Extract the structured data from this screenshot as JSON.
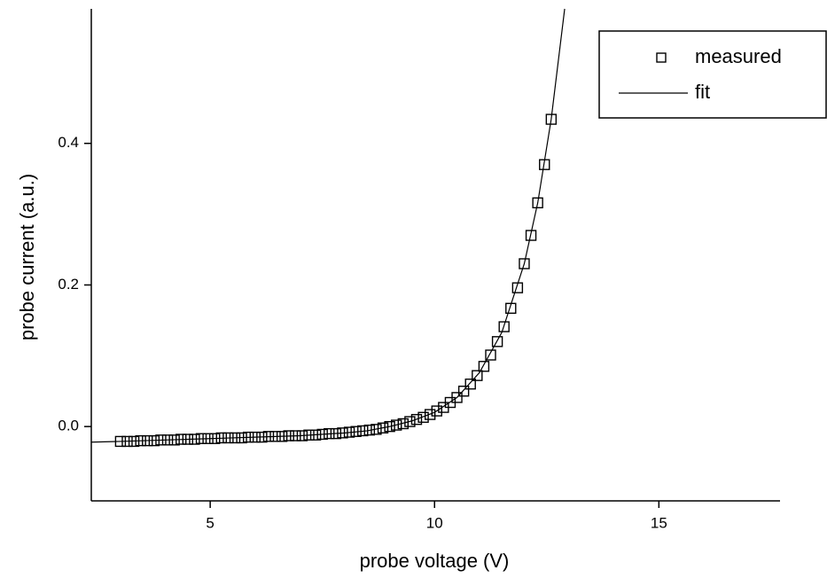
{
  "chart_data": {
    "type": "scatter",
    "x_label": "probe voltage (V)",
    "y_label": "probe current (a.u.)",
    "xlim": [
      2.35,
      17.7
    ],
    "ylim": [
      -0.105,
      0.59
    ],
    "xticks": [
      5,
      10,
      15
    ],
    "yticks": [
      {
        "value": 0,
        "label": "0.0"
      },
      0.2,
      0.4
    ],
    "legend": "upper right",
    "series": [
      {
        "name": "measured",
        "style": "markers",
        "color": "#000000",
        "x": [
          3.0,
          3.15,
          3.3,
          3.45,
          3.6,
          3.75,
          3.9,
          4.05,
          4.2,
          4.35,
          4.5,
          4.65,
          4.8,
          4.95,
          5.1,
          5.25,
          5.4,
          5.55,
          5.7,
          5.85,
          6.0,
          6.15,
          6.3,
          6.45,
          6.6,
          6.75,
          6.9,
          7.05,
          7.2,
          7.35,
          7.5,
          7.65,
          7.8,
          7.95,
          8.1,
          8.25,
          8.4,
          8.55,
          8.7,
          8.85,
          9.0,
          9.15,
          9.3,
          9.45,
          9.6,
          9.75,
          9.9,
          10.05,
          10.2,
          10.35,
          10.5,
          10.65,
          10.8,
          10.95,
          11.1,
          11.25,
          11.4,
          11.55,
          11.7,
          11.85,
          12.0,
          12.15,
          12.3,
          12.45,
          12.6
        ],
        "values": [
          -0.021,
          -0.021,
          -0.021,
          -0.02,
          -0.02,
          -0.02,
          -0.019,
          -0.019,
          -0.019,
          -0.018,
          -0.018,
          -0.018,
          -0.017,
          -0.017,
          -0.017,
          -0.016,
          -0.016,
          -0.016,
          -0.016,
          -0.015,
          -0.015,
          -0.015,
          -0.014,
          -0.014,
          -0.014,
          -0.013,
          -0.013,
          -0.013,
          -0.012,
          -0.012,
          -0.011,
          -0.01,
          -0.01,
          -0.009,
          -0.008,
          -0.007,
          -0.006,
          -0.005,
          -0.004,
          -0.002,
          0.0,
          0.002,
          0.004,
          0.007,
          0.01,
          0.013,
          0.017,
          0.022,
          0.027,
          0.034,
          0.041,
          0.05,
          0.06,
          0.072,
          0.085,
          0.101,
          0.12,
          0.141,
          0.167,
          0.196,
          0.23,
          0.27,
          0.316,
          0.37,
          0.434
        ]
      },
      {
        "name": "fit",
        "style": "line",
        "color": "#000000",
        "x": [
          2.35,
          3,
          4,
          5,
          6,
          7,
          8,
          8.5,
          9,
          9.5,
          10,
          10.5,
          11,
          11.5,
          12,
          12.3,
          12.6,
          12.9
        ],
        "values": [
          -0.022,
          -0.021,
          -0.019,
          -0.017,
          -0.015,
          -0.013,
          -0.009,
          -0.006,
          0.0,
          0.008,
          0.02,
          0.041,
          0.076,
          0.133,
          0.23,
          0.316,
          0.434,
          0.59
        ]
      }
    ]
  }
}
